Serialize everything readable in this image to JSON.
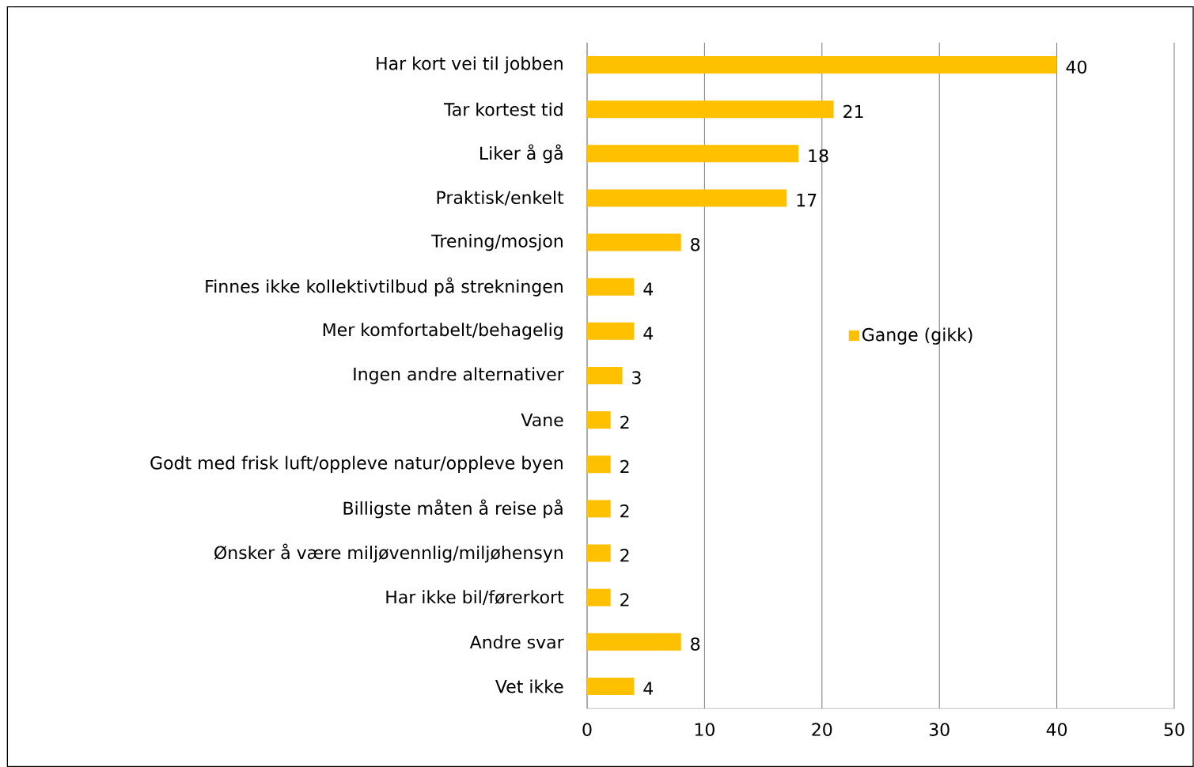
{
  "chart_data": {
    "type": "bar",
    "orientation": "horizontal",
    "categories": [
      "Har kort vei til jobben",
      "Tar kortest tid",
      "Liker å gå",
      "Praktisk/enkelt",
      "Trening/mosjon",
      "Finnes ikke kollektivtilbud på strekningen",
      "Mer komfortabelt/behagelig",
      "Ingen andre alternativer",
      "Vane",
      "Godt med frisk luft/oppleve natur/oppleve byen",
      "Billigste måten å reise på",
      "Ønsker å være miljøvennlig/miljøhensyn",
      "Har ikke bil/førerkort",
      "Andre svar",
      "Vet ikke"
    ],
    "series": [
      {
        "name": "Gange (gikk)",
        "color": "#ffc000",
        "values": [
          40,
          21,
          18,
          17,
          8,
          4,
          4,
          3,
          2,
          2,
          2,
          2,
          2,
          8,
          4
        ]
      }
    ],
    "xlim": [
      0,
      50
    ],
    "xticks": [
      0,
      10,
      20,
      30,
      40,
      50
    ],
    "grid": "x",
    "legend": "right",
    "data_labels": true
  }
}
